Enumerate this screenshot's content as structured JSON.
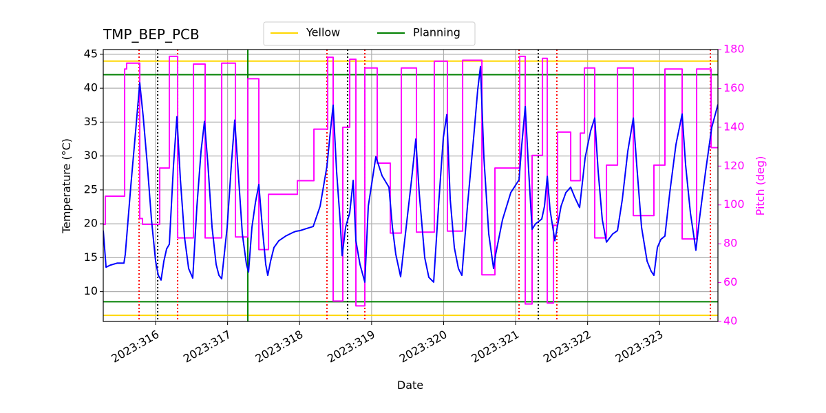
{
  "chart_data": {
    "type": "line",
    "title": "TMP_BEP_PCB",
    "xlabel": "Date",
    "ylabel": "Temperature (°C)",
    "y2label": "Pitch (deg)",
    "y2color": "#ff00ff",
    "xlim": [
      315.273,
      323.81
    ],
    "ylim": [
      5.6,
      45.7
    ],
    "y2lim": [
      40,
      180
    ],
    "xticks": [
      {
        "value": 316,
        "label": "2023:316"
      },
      {
        "value": 317,
        "label": "2023:317"
      },
      {
        "value": 318,
        "label": "2023:318"
      },
      {
        "value": 319,
        "label": "2023:319"
      },
      {
        "value": 320,
        "label": "2023:320"
      },
      {
        "value": 321,
        "label": "2023:321"
      },
      {
        "value": 322,
        "label": "2023:322"
      },
      {
        "value": 323,
        "label": "2023:323"
      }
    ],
    "yticks": [
      10,
      15,
      20,
      25,
      30,
      35,
      40,
      45
    ],
    "y2ticks": [
      40,
      60,
      80,
      100,
      120,
      140,
      160,
      180
    ],
    "grid": true,
    "legend": "upper center",
    "hlines": [
      {
        "name": "Yellow",
        "color": "#ffd700",
        "values": [
          44,
          6.5
        ]
      },
      {
        "name": "Planning",
        "color": "#008000",
        "values": [
          42,
          8.5
        ]
      }
    ],
    "vlines": [
      {
        "x": 315.771,
        "color": "#ff0000",
        "style": "dotted"
      },
      {
        "x": 316.306,
        "color": "#ff0000",
        "style": "dotted"
      },
      {
        "x": 318.38,
        "color": "#ff0000",
        "style": "dotted"
      },
      {
        "x": 318.906,
        "color": "#ff0000",
        "style": "dotted"
      },
      {
        "x": 321.048,
        "color": "#ff0000",
        "style": "dotted"
      },
      {
        "x": 321.573,
        "color": "#ff0000",
        "style": "dotted"
      },
      {
        "x": 323.705,
        "color": "#ff0000",
        "style": "dotted"
      },
      {
        "x": 316.029,
        "color": "#000000",
        "style": "dotted"
      },
      {
        "x": 318.667,
        "color": "#000000",
        "style": "dotted"
      },
      {
        "x": 321.315,
        "color": "#000000",
        "style": "dotted"
      },
      {
        "x": 317.281,
        "color": "#008000",
        "style": "solid"
      }
    ],
    "series": [
      {
        "color": "#ff00ff",
        "axis": "y2",
        "x": [
          315.273,
          315.302,
          315.302,
          315.57,
          315.57,
          315.598,
          315.598,
          315.78,
          315.78,
          315.818,
          315.818,
          316.057,
          316.057,
          316.191,
          316.191,
          316.306,
          316.306,
          316.526,
          316.526,
          316.688,
          316.688,
          316.918,
          316.918,
          317.109,
          317.109,
          317.281,
          317.281,
          317.434,
          317.434,
          317.568,
          317.568,
          317.969,
          317.969,
          318.199,
          318.199,
          318.39,
          318.39,
          318.466,
          318.466,
          318.6,
          318.6,
          318.696,
          318.696,
          318.782,
          318.782,
          318.906,
          318.906,
          319.078,
          319.078,
          319.26,
          319.26,
          319.413,
          319.413,
          319.623,
          319.623,
          319.871,
          319.871,
          320.053,
          320.053,
          320.264,
          320.264,
          320.532,
          320.532,
          320.713,
          320.713,
          321.057,
          321.057,
          321.134,
          321.134,
          321.229,
          321.229,
          321.373,
          321.373,
          321.44,
          321.44,
          321.526,
          321.526,
          321.583,
          321.583,
          321.765,
          321.765,
          321.899,
          321.899,
          321.956,
          321.956,
          322.099,
          322.099,
          322.262,
          322.262,
          322.415,
          322.415,
          322.635,
          322.635,
          322.921,
          322.921,
          323.074,
          323.074,
          323.313,
          323.313,
          323.514,
          323.514,
          323.715,
          323.715,
          323.81
        ],
        "values": [
          90,
          90,
          104.5,
          104.5,
          170,
          170,
          173,
          173,
          93,
          93,
          90,
          90,
          119,
          119,
          176.5,
          176.5,
          83,
          83,
          172.5,
          172.5,
          83,
          83,
          173,
          173,
          83.5,
          83.5,
          165,
          165,
          77,
          77,
          105.5,
          105.5,
          112.5,
          112.5,
          139,
          139,
          176,
          176,
          50.5,
          50.5,
          140,
          140,
          175,
          175,
          48,
          48,
          170.5,
          170.5,
          121.5,
          121.5,
          85.5,
          85.5,
          170.5,
          170.5,
          86,
          86,
          174,
          174,
          86.5,
          86.5,
          174.5,
          174.5,
          64,
          64,
          119,
          119,
          176.5,
          176.5,
          49,
          49,
          125.5,
          125.5,
          175.5,
          175.5,
          49.5,
          49.5,
          89.5,
          89.5,
          137.5,
          137.5,
          112.5,
          112.5,
          137,
          137,
          170.5,
          170.5,
          83,
          83,
          120.5,
          120.5,
          170.5,
          170.5,
          94.5,
          94.5,
          120.5,
          120.5,
          170,
          170,
          82.5,
          82.5,
          170,
          170,
          129.5,
          129.5
        ]
      },
      {
        "color": "#0000ff",
        "axis": "y",
        "x": [
          315.273,
          315.312,
          315.369,
          315.465,
          315.56,
          315.579,
          315.656,
          315.723,
          315.78,
          315.828,
          315.885,
          315.943,
          316.0,
          316.038,
          316.076,
          316.115,
          316.153,
          316.191,
          316.249,
          316.296,
          316.344,
          316.402,
          316.459,
          316.516,
          316.574,
          316.631,
          316.679,
          316.727,
          316.784,
          316.841,
          316.88,
          316.918,
          316.994,
          317.052,
          317.099,
          317.147,
          317.205,
          317.262,
          317.291,
          317.338,
          317.386,
          317.434,
          317.482,
          317.53,
          317.558,
          317.597,
          317.644,
          317.711,
          317.807,
          317.902,
          317.95,
          318.008,
          318.094,
          318.189,
          318.285,
          318.38,
          318.428,
          318.466,
          318.514,
          318.562,
          318.591,
          318.639,
          318.696,
          318.744,
          318.782,
          318.839,
          318.906,
          318.954,
          319.059,
          319.145,
          319.241,
          319.289,
          319.336,
          319.403,
          319.48,
          319.556,
          319.614,
          319.661,
          319.738,
          319.795,
          319.862,
          319.929,
          319.996,
          320.044,
          320.092,
          320.149,
          320.206,
          320.254,
          320.331,
          320.417,
          320.474,
          320.512,
          320.56,
          320.627,
          320.694,
          320.723,
          320.818,
          320.933,
          321.048,
          321.086,
          321.134,
          321.182,
          321.229,
          321.277,
          321.363,
          321.401,
          321.44,
          321.478,
          321.545,
          321.631,
          321.698,
          321.765,
          321.822,
          321.889,
          321.965,
          322.042,
          322.099,
          322.147,
          322.204,
          322.262,
          322.348,
          322.415,
          322.482,
          322.558,
          322.635,
          322.682,
          322.749,
          322.826,
          322.883,
          322.921,
          322.969,
          323.017,
          323.074,
          323.141,
          323.227,
          323.313,
          323.361,
          323.428,
          323.504,
          323.552,
          323.638,
          323.724,
          323.81
        ],
        "values": [
          19.0,
          13.6,
          13.9,
          14.2,
          14.2,
          15.5,
          25.6,
          33.7,
          40.8,
          35.8,
          28.7,
          20.6,
          14.5,
          12.4,
          11.7,
          14.5,
          16.3,
          17.0,
          28.7,
          35.8,
          26.6,
          18.0,
          13.4,
          12.0,
          22.6,
          30.7,
          35.1,
          28.7,
          19.5,
          14.0,
          12.4,
          11.9,
          19.5,
          28.7,
          35.3,
          27.7,
          18.5,
          14.0,
          12.9,
          19.5,
          23.1,
          25.8,
          19.5,
          14.0,
          12.4,
          14.5,
          16.5,
          17.5,
          18.2,
          18.7,
          18.9,
          19.0,
          19.3,
          19.6,
          22.6,
          28.5,
          33.7,
          37.5,
          27.7,
          20.6,
          15.3,
          19.5,
          21.6,
          26.4,
          17.5,
          14.0,
          11.4,
          22.6,
          29.9,
          27.1,
          25.4,
          19.5,
          15.5,
          12.2,
          19.5,
          26.6,
          32.5,
          24.6,
          15.0,
          12.1,
          11.4,
          22.6,
          32.7,
          36.1,
          23.6,
          16.5,
          13.4,
          12.4,
          22.6,
          32.7,
          39.8,
          43.2,
          29.7,
          18.5,
          13.4,
          15.5,
          20.6,
          24.6,
          26.5,
          31.7,
          37.3,
          27.7,
          19.2,
          20.0,
          20.7,
          22.6,
          27.0,
          22.1,
          17.5,
          22.6,
          24.6,
          25.4,
          23.9,
          22.4,
          29.7,
          33.7,
          35.6,
          27.7,
          20.6,
          17.3,
          18.5,
          19.0,
          23.6,
          30.7,
          35.6,
          28.7,
          19.5,
          14.5,
          13.0,
          12.4,
          16.5,
          17.7,
          18.2,
          24.6,
          31.7,
          36.2,
          28.7,
          21.6,
          16.1,
          20.6,
          27.7,
          34.2,
          37.6
        ]
      }
    ]
  }
}
